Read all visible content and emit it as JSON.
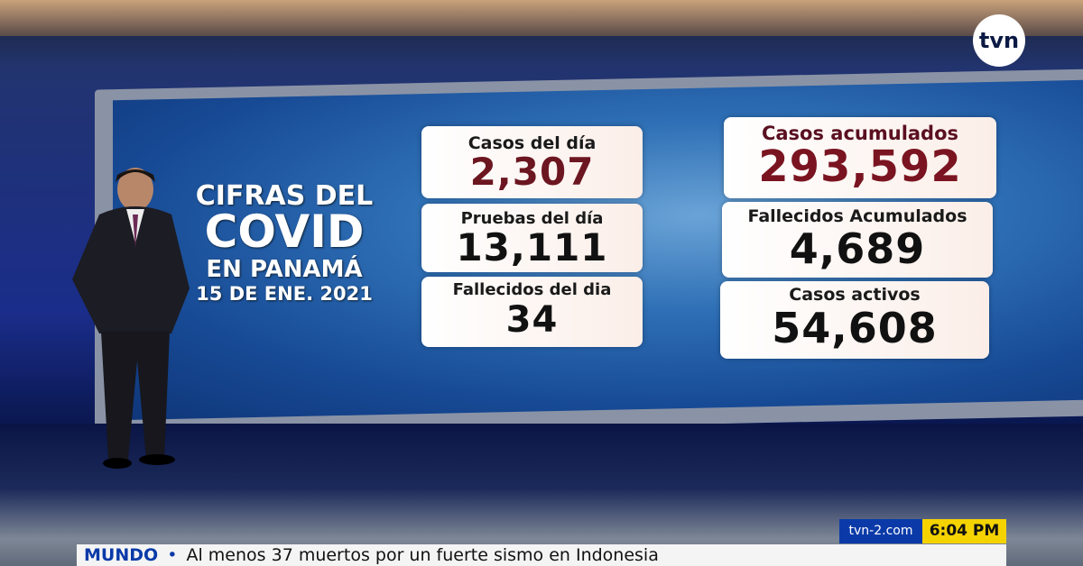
{
  "logo": "tvn",
  "board": {
    "title": [
      "CIFRAS DEL",
      "COVID",
      "EN PANAMÁ",
      "15 DE ENE. 2021"
    ],
    "daily": [
      {
        "label": "Casos del día",
        "value": "2,307"
      },
      {
        "label": "Pruebas del día",
        "value": "13,111"
      },
      {
        "label": "Fallecidos del dia",
        "value": "34"
      }
    ],
    "totals": [
      {
        "label": "Casos acumulados",
        "value": "293,592"
      },
      {
        "label": "Fallecidos Acumulados",
        "value": "4,689"
      },
      {
        "label": "Casos activos",
        "value": "54,608"
      }
    ]
  },
  "ticker": {
    "site": "tvn-2.com",
    "time": "6:04 PM",
    "section": "MUNDO",
    "separator": "•",
    "headline": "Al menos 37 muertos por un fuerte sismo en Indonesia"
  }
}
